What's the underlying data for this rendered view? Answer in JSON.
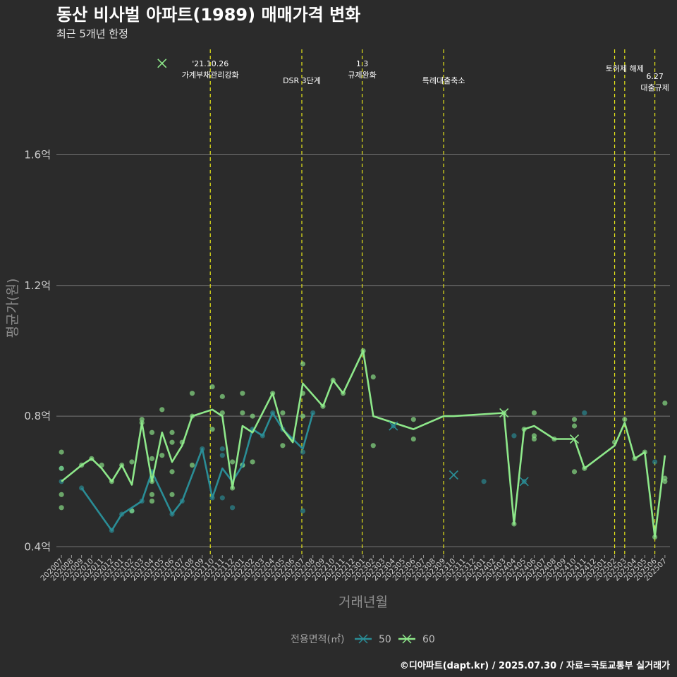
{
  "header": {
    "title": "동산 비사벌 아파트(1989) 매매가격 변화",
    "subtitle": "최근 5개년 한정"
  },
  "caption": "©디아파트(dapt.kr) / 2025.07.30 / 자료=국토교통부 실거래가",
  "colors": {
    "background": "#2b2b2b",
    "grid": "#777777",
    "event_line": "#e6e619",
    "series_50": "#2a8d96",
    "series_60": "#8ee88a"
  },
  "chart_data": {
    "type": "line",
    "title": "동산 비사벌 아파트(1989) 매매가격 변화",
    "subtitle": "최근 5개년 한정",
    "xlabel": "거래년월",
    "ylabel": "평균가(원)",
    "ylim": [
      0.375,
      1.94
    ],
    "y_ticks": [
      0.4,
      0.8,
      1.2,
      1.6
    ],
    "y_tick_labels": [
      "0.4억",
      "0.8억",
      "1.2억",
      "1.6억"
    ],
    "categories": [
      "202007",
      "202008",
      "202009",
      "202010",
      "202011",
      "202012",
      "202101",
      "202102",
      "202103",
      "202104",
      "202105",
      "202106",
      "202107",
      "202108",
      "202109",
      "202110",
      "202111",
      "202112",
      "202201",
      "202202",
      "202203",
      "202204",
      "202205",
      "202206",
      "202207",
      "202208",
      "202209",
      "202210",
      "202211",
      "202212",
      "202301",
      "202302",
      "202303",
      "202304",
      "202305",
      "202306",
      "202307",
      "202308",
      "202309",
      "202310",
      "202311",
      "202312",
      "202401",
      "202402",
      "202403",
      "202404",
      "202405",
      "202406",
      "202407",
      "202408",
      "202409",
      "202410",
      "202411",
      "202412",
      "202501",
      "202502",
      "202503",
      "202504",
      "202505",
      "202506",
      "202507"
    ],
    "legend": {
      "title": "전용면적(㎡)",
      "items": [
        "50",
        "60"
      ]
    },
    "series": [
      {
        "name": "50",
        "color": "#2a8d96",
        "line": [
          [
            2,
            0.58
          ],
          [
            5,
            0.45
          ],
          [
            6,
            0.5
          ],
          [
            8,
            0.54
          ],
          [
            9,
            0.63
          ],
          [
            11,
            0.5
          ],
          [
            12,
            0.54
          ],
          [
            14,
            0.7
          ],
          [
            15,
            0.55
          ],
          [
            16,
            0.64
          ],
          [
            17,
            0.6
          ],
          [
            18,
            0.65
          ],
          [
            19,
            0.76
          ],
          [
            20,
            0.74
          ],
          [
            21,
            0.81
          ],
          [
            22,
            0.76
          ],
          [
            23,
            0.73
          ],
          [
            24,
            0.7
          ],
          [
            25,
            0.81
          ]
        ],
        "lone_markers": [
          [
            33,
            0.77
          ],
          [
            39,
            0.62
          ],
          [
            46,
            0.6
          ]
        ],
        "points": [
          [
            0,
            0.64
          ],
          [
            0,
            0.6
          ],
          [
            2,
            0.58
          ],
          [
            5,
            0.45
          ],
          [
            6,
            0.5
          ],
          [
            7,
            0.51
          ],
          [
            8,
            0.54
          ],
          [
            9,
            0.63
          ],
          [
            11,
            0.5
          ],
          [
            12,
            0.54
          ],
          [
            14,
            0.7
          ],
          [
            15,
            0.55
          ],
          [
            16,
            0.7
          ],
          [
            16,
            0.68
          ],
          [
            16,
            0.55
          ],
          [
            17,
            0.52
          ],
          [
            18,
            0.65
          ],
          [
            19,
            0.76
          ],
          [
            20,
            0.74
          ],
          [
            21,
            0.81
          ],
          [
            22,
            0.76
          ],
          [
            23,
            0.73
          ],
          [
            24,
            0.69
          ],
          [
            24,
            0.51
          ],
          [
            25,
            0.81
          ],
          [
            33,
            0.77
          ],
          [
            42,
            0.6
          ],
          [
            45,
            0.74
          ],
          [
            46,
            0.6
          ],
          [
            52,
            0.81
          ],
          [
            59,
            0.66
          ]
        ]
      },
      {
        "name": "60",
        "color": "#8ee88a",
        "line": [
          [
            0,
            0.6
          ],
          [
            2,
            0.65
          ],
          [
            3,
            0.67
          ],
          [
            4,
            0.64
          ],
          [
            5,
            0.6
          ],
          [
            6,
            0.65
          ],
          [
            7,
            0.59
          ],
          [
            8,
            0.78
          ],
          [
            9,
            0.6
          ],
          [
            10,
            0.75
          ],
          [
            11,
            0.66
          ],
          [
            12,
            0.71
          ],
          [
            13,
            0.8
          ],
          [
            15,
            0.82
          ],
          [
            16,
            0.8
          ],
          [
            17,
            0.58
          ],
          [
            18,
            0.77
          ],
          [
            19,
            0.75
          ],
          [
            21,
            0.87
          ],
          [
            22,
            0.76
          ],
          [
            23,
            0.72
          ],
          [
            24,
            0.9
          ],
          [
            26,
            0.83
          ],
          [
            27,
            0.91
          ],
          [
            28,
            0.87
          ],
          [
            30,
            1.0
          ],
          [
            31,
            0.8
          ],
          [
            35,
            0.76
          ],
          [
            38,
            0.8
          ],
          [
            39,
            0.8
          ],
          [
            44,
            0.81
          ],
          [
            45,
            0.47
          ],
          [
            46,
            0.76
          ],
          [
            47,
            0.77
          ],
          [
            49,
            0.73
          ],
          [
            51,
            0.73
          ],
          [
            52,
            0.64
          ],
          [
            55,
            0.71
          ],
          [
            56,
            0.78
          ],
          [
            57,
            0.67
          ],
          [
            58,
            0.69
          ],
          [
            59,
            0.43
          ],
          [
            60,
            0.68
          ]
        ],
        "lone_markers": [
          [
            10,
            1.88
          ],
          [
            44,
            0.81
          ],
          [
            51,
            0.73
          ]
        ],
        "points": [
          [
            0,
            0.69
          ],
          [
            0,
            0.64
          ],
          [
            0,
            0.56
          ],
          [
            0,
            0.52
          ],
          [
            2,
            0.65
          ],
          [
            3,
            0.67
          ],
          [
            4,
            0.65
          ],
          [
            5,
            0.6
          ],
          [
            6,
            0.65
          ],
          [
            7,
            0.66
          ],
          [
            7,
            0.51
          ],
          [
            8,
            0.79
          ],
          [
            8,
            0.78
          ],
          [
            9,
            0.75
          ],
          [
            9,
            0.67
          ],
          [
            9,
            0.6
          ],
          [
            9,
            0.56
          ],
          [
            9,
            0.54
          ],
          [
            10,
            0.82
          ],
          [
            10,
            0.68
          ],
          [
            11,
            0.75
          ],
          [
            11,
            0.72
          ],
          [
            11,
            0.63
          ],
          [
            11,
            0.56
          ],
          [
            12,
            0.72
          ],
          [
            13,
            0.87
          ],
          [
            13,
            0.8
          ],
          [
            13,
            0.65
          ],
          [
            15,
            0.89
          ],
          [
            15,
            0.76
          ],
          [
            16,
            0.86
          ],
          [
            16,
            0.81
          ],
          [
            17,
            0.66
          ],
          [
            17,
            0.58
          ],
          [
            18,
            0.87
          ],
          [
            18,
            0.81
          ],
          [
            18,
            0.65
          ],
          [
            19,
            0.8
          ],
          [
            19,
            0.66
          ],
          [
            21,
            0.87
          ],
          [
            22,
            0.81
          ],
          [
            22,
            0.71
          ],
          [
            24,
            0.96
          ],
          [
            24,
            0.87
          ],
          [
            24,
            0.8
          ],
          [
            26,
            0.83
          ],
          [
            27,
            0.91
          ],
          [
            28,
            0.87
          ],
          [
            30,
            1.0
          ],
          [
            31,
            0.92
          ],
          [
            31,
            0.71
          ],
          [
            35,
            0.79
          ],
          [
            35,
            0.73
          ],
          [
            44,
            0.81
          ],
          [
            45,
            0.47
          ],
          [
            46,
            0.76
          ],
          [
            47,
            0.81
          ],
          [
            47,
            0.74
          ],
          [
            47,
            0.73
          ],
          [
            49,
            0.73
          ],
          [
            51,
            0.79
          ],
          [
            51,
            0.77
          ],
          [
            51,
            0.63
          ],
          [
            52,
            0.64
          ],
          [
            55,
            0.72
          ],
          [
            56,
            0.79
          ],
          [
            57,
            0.67
          ],
          [
            58,
            0.69
          ],
          [
            59,
            0.43
          ],
          [
            60,
            0.84
          ],
          [
            60,
            0.61
          ],
          [
            60,
            0.6
          ]
        ]
      }
    ],
    "events": [
      {
        "x": 14.8,
        "lines": [
          "'21.10.26",
          "가계부채관리강화"
        ]
      },
      {
        "x": 23.9,
        "lines": [
          "DSR 3단계"
        ]
      },
      {
        "x": 29.9,
        "lines": [
          "1.3",
          "규제완화"
        ]
      },
      {
        "x": 38.0,
        "lines": [
          "특례대출축소"
        ]
      },
      {
        "x": 55.0,
        "lines": []
      },
      {
        "x": 56.0,
        "lines": [
          "토허제 해제"
        ]
      },
      {
        "x": 59.0,
        "lines": [
          "6.27",
          "대출규제"
        ]
      }
    ]
  }
}
